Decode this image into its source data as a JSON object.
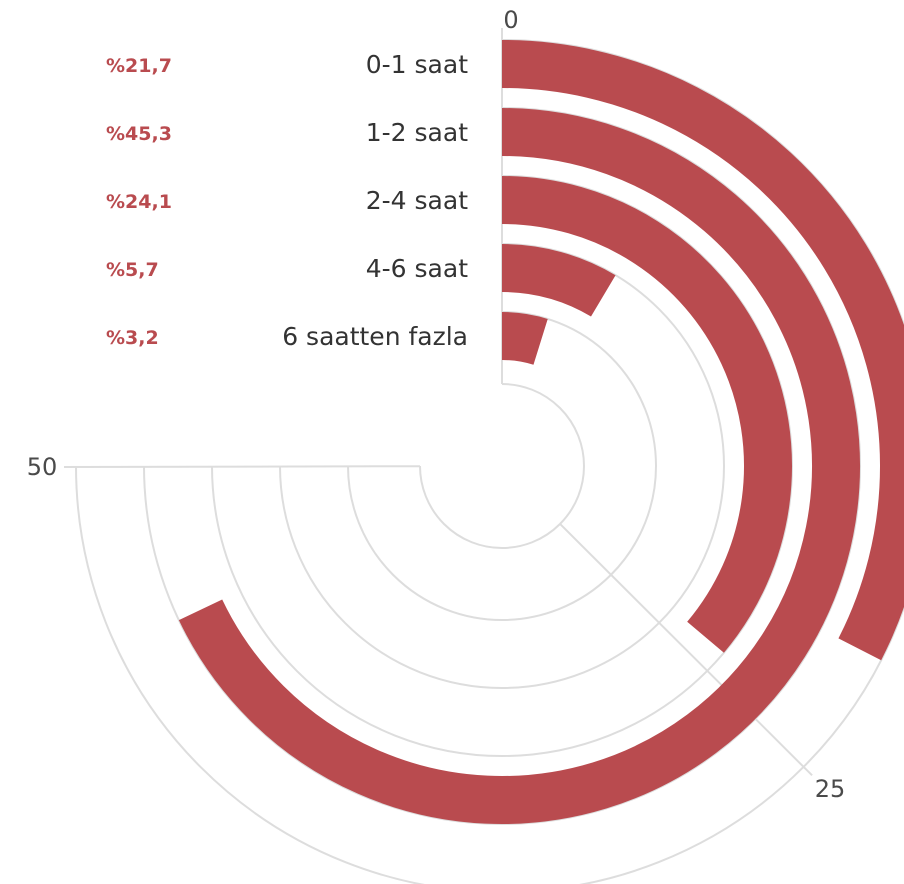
{
  "chart_data": {
    "type": "radial-bar",
    "categories": [
      "0-1 saat",
      "1-2 saat",
      "2-4 saat",
      "4-6 saat",
      "6 saatten fazla"
    ],
    "values": [
      21.7,
      45.3,
      24.1,
      5.7,
      3.2
    ],
    "value_labels": [
      "%21,7",
      "%45,3",
      "%24,1",
      "%5,7",
      "%3,2"
    ],
    "axis": {
      "min": 0,
      "max": 66.7,
      "ticks": [
        0,
        25,
        50
      ],
      "tick_labels": [
        "0",
        "25",
        "50"
      ]
    },
    "grid": true
  },
  "colors": {
    "bar": "#b94b4f",
    "value_label": "#b94b4f",
    "grid": "#dddddd",
    "text": "#333333"
  }
}
